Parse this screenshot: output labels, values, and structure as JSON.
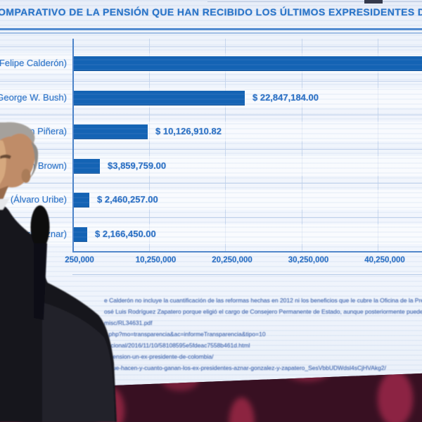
{
  "screen": {
    "title_display": "O COMPARATIVO DE LA PENSIÓN QUE HAN RECIBIDO LOS ÚLTIMOS EXPRESIDENTES DE C"
  },
  "chart_data": {
    "type": "bar",
    "orientation": "horizontal",
    "title": "COMPARATIVO DE LA PENSIÓN QUE HAN RECIBIDO LOS ÚLTIMOS EXPRESIDENTES",
    "categories": [
      "(Felipe Calderón)",
      "(George W. Bush)",
      "(Sebastián Piñera)",
      "(Gordon Brown)",
      "(Álvaro Uribe)",
      "(José María Aznar)"
    ],
    "values": [
      null,
      22847184.0,
      10126910.82,
      3859759.0,
      2460257.0,
      2166450.0
    ],
    "value_labels": [
      "",
      "$ 22,847,184.00",
      "$ 10,126,910.82",
      "$3,859,759.00",
      "$ 2,460,257.00",
      "$ 2,166,450.00"
    ],
    "bar_clipped": [
      true,
      false,
      false,
      false,
      false,
      false
    ],
    "x_ticks": [
      "250,000",
      "10,250,000",
      "20,250,000",
      "30,250,000",
      "40,250,000"
    ],
    "x_tick_values": [
      250000,
      10250000,
      20250000,
      30250000,
      40250000
    ],
    "xlim": [
      250000,
      46000000
    ],
    "grid": "vertical",
    "legend": "none",
    "bar_color": "#1463b4"
  },
  "footnotes": {
    "lines": [
      "e Calderón no incluye la cuantificación de las reformas hechas en 2012 ni los beneficios que le cubre la Oficina de la Presid",
      "osé Luis Rodríguez Zapatero porque eligió el cargo de Consejero Permanente de Estado, aunque posteriormente puede reg",
      "misc/RL34631.pdf",
      "x.php?mo=transparencia&ac=informeTransparencia&tipo=10",
      "nacional/2016/11/10/58108595e5fdeac7558b461d.html",
      "n-pension-un-ex-presidente-de-colombia/",
      "a/que-hacen-y-cuanto-ganan-los-ex-presidentes-aznar-gonzalez-y-zapatero_SesVbbUDWdsl4sCjHVAkg2/"
    ]
  },
  "colors": {
    "bar_blue": "#1463b4",
    "title_blue": "#2673c8",
    "label_blue": "#2e76ca",
    "screen_bg": "#eef3fb",
    "wall_base": "#381022",
    "wall_accent": "#8c2440",
    "suit": "#15151f",
    "skin": "#bf8c68",
    "hair": "#a5a19c",
    "microphone": "#0a0a0f"
  }
}
